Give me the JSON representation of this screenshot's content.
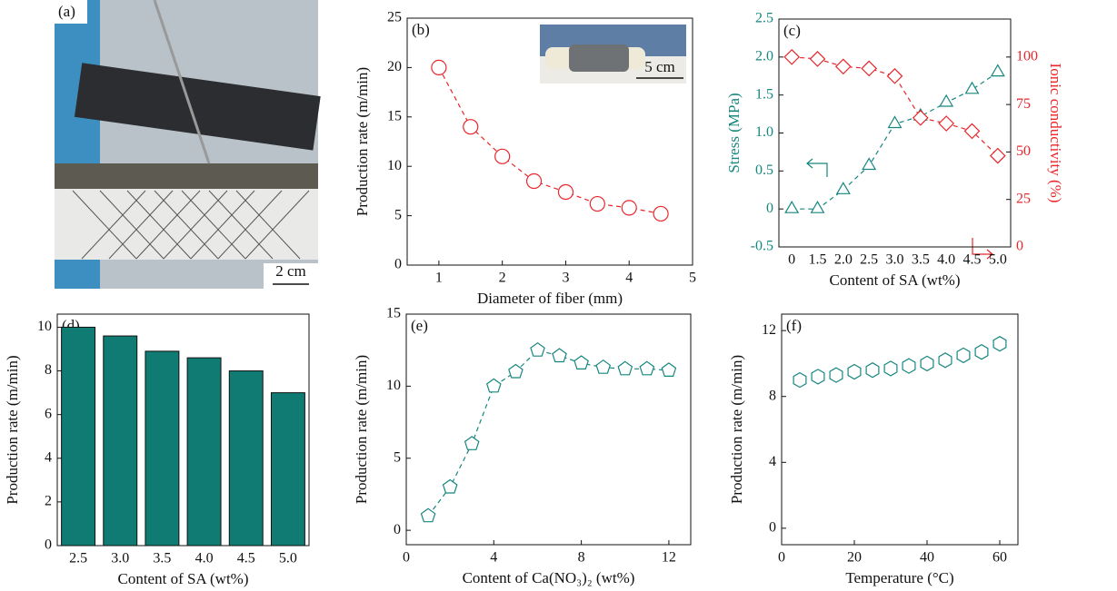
{
  "photo": {
    "label": "(a)",
    "scale_bar": "2 cm"
  },
  "chart_data": [
    {
      "type": "line",
      "label": "(b)",
      "inset_scale_bar": "5 cm",
      "xlabel": "Diameter of fiber (mm)",
      "ylabel": "Production rate (m/min)",
      "x": [
        1,
        1.5,
        2,
        2.5,
        3,
        3.5,
        4,
        4.5
      ],
      "values": [
        20,
        14,
        11,
        8.5,
        7.4,
        6.2,
        5.8,
        5.2
      ],
      "color": "#e8262b",
      "marker": "circle",
      "dashed": true,
      "xlim": [
        0.5,
        5
      ],
      "xticks": [
        1,
        2,
        3,
        4,
        5
      ],
      "ylim": [
        0,
        25
      ],
      "yticks": [
        0,
        5,
        10,
        15,
        20,
        25
      ]
    },
    {
      "type": "line",
      "label": "(c)",
      "xlabel": "Content of SA (wt%)",
      "ylabel": "Stress (MPa)",
      "y2label": "Ionic conductivity (%)",
      "categories": [
        "0",
        "1.5",
        "2.0",
        "2.5",
        "3.0",
        "3.5",
        "4.0",
        "4.5",
        "5.0"
      ],
      "series": [
        {
          "color": "#16867f",
          "marker": "triangle",
          "values": [
            0,
            0,
            0.25,
            0.57,
            1.12,
            1.22,
            1.4,
            1.57,
            1.8
          ]
        },
        {
          "color": "#e8262b",
          "marker": "diamond",
          "axis": "y2",
          "values": [
            100,
            99,
            95,
            94,
            90,
            68,
            65,
            61,
            48
          ]
        }
      ],
      "dashed": true,
      "ylim": [
        -0.5,
        2.5
      ],
      "yticks": [
        -0.5,
        0,
        0.5,
        {
          "value": 1,
          "label": "1.0"
        },
        1.5,
        {
          "value": 2,
          "label": "2.0"
        },
        2.5
      ],
      "y2lim": [
        0,
        120
      ],
      "y2ticks": [
        0,
        25,
        50,
        75,
        100
      ]
    },
    {
      "type": "bar",
      "label": "(d)",
      "xlabel": "Content of SA (wt%)",
      "ylabel": "Production rate (m/min)",
      "categories": [
        "2.5",
        "3.0",
        "3.5",
        "4.0",
        "4.5",
        "5.0"
      ],
      "values": [
        10,
        9.6,
        8.9,
        8.6,
        8,
        7
      ],
      "color": "#0f7b73",
      "ylim": [
        0,
        10.6
      ],
      "yticks": [
        0,
        2,
        4,
        6,
        8,
        10
      ]
    },
    {
      "type": "line",
      "label": "(e)",
      "xlabel": "Content of Ca(NO₃)₂ (wt%)",
      "ylabel": "Production rate (m/min)",
      "x": [
        1,
        2,
        3,
        4,
        5,
        6,
        7,
        8,
        9,
        10,
        11,
        12
      ],
      "values": [
        1,
        3,
        6,
        10,
        11,
        12.5,
        12.1,
        11.6,
        11.3,
        11.2,
        11.2,
        11.1
      ],
      "color": "#16867f",
      "marker": "pentagon",
      "dashed": true,
      "xlim": [
        0,
        13
      ],
      "xticks": [
        0,
        4,
        8,
        12
      ],
      "ylim": [
        -1,
        15
      ],
      "yticks": [
        0,
        5,
        10,
        15
      ]
    },
    {
      "type": "scatter",
      "label": "(f)",
      "xlabel": "Temperature (°C)",
      "ylabel": "Production rate (m/min)",
      "x": [
        5,
        10,
        15,
        20,
        25,
        30,
        35,
        40,
        45,
        50,
        55,
        60
      ],
      "values": [
        9,
        9.2,
        9.3,
        9.5,
        9.6,
        9.7,
        9.85,
        10,
        10.2,
        10.5,
        10.7,
        11.2
      ],
      "color": "#16867f",
      "marker": "hexagon",
      "xlim": [
        0,
        65
      ],
      "xticks": [
        0,
        20,
        40,
        60
      ],
      "ylim": [
        -1,
        13
      ],
      "yticks": [
        0,
        4,
        8,
        12
      ]
    }
  ]
}
